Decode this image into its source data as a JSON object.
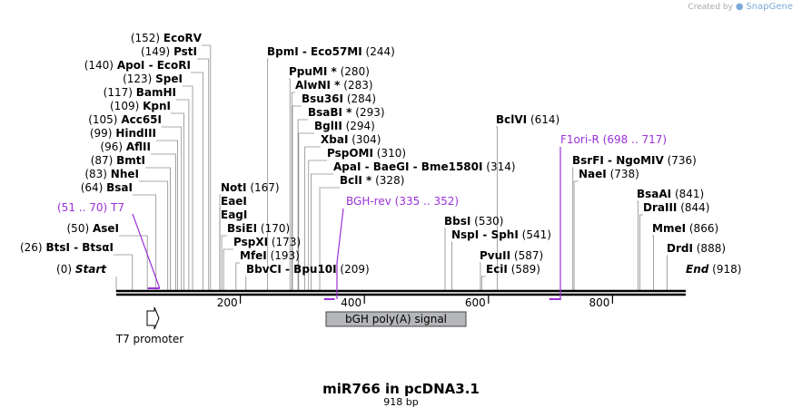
{
  "credit": {
    "prefix": "Created by",
    "brand": "SnapGene"
  },
  "title": "miR766 in pcDNA3.1",
  "subtitle": "918 bp",
  "sequence": {
    "length": 918,
    "start_label": "Start",
    "end_label": "End",
    "start_pos": "(0)",
    "end_pos": "(918)"
  },
  "ticks": [
    200,
    400,
    600,
    800
  ],
  "sites": [
    {
      "name": "EcoRV",
      "pos": 152,
      "pos_text": "(152)"
    },
    {
      "name": "PstI",
      "pos": 149,
      "pos_text": "(149)"
    },
    {
      "name": "ApoI - EcoRI",
      "pos": 140,
      "pos_text": "(140)"
    },
    {
      "name": "SpeI",
      "pos": 123,
      "pos_text": "(123)"
    },
    {
      "name": "BamHI",
      "pos": 117,
      "pos_text": "(117)"
    },
    {
      "name": "KpnI",
      "pos": 109,
      "pos_text": "(109)"
    },
    {
      "name": "Acc65I",
      "pos": 105,
      "pos_text": "(105)"
    },
    {
      "name": "HindIII",
      "pos": 99,
      "pos_text": "(99)"
    },
    {
      "name": "AflII",
      "pos": 96,
      "pos_text": "(96)"
    },
    {
      "name": "BmtI",
      "pos": 87,
      "pos_text": "(87)"
    },
    {
      "name": "NheI",
      "pos": 83,
      "pos_text": "(83)"
    },
    {
      "name": "BsaI",
      "pos": 64,
      "pos_text": "(64)"
    },
    {
      "name": "AseI",
      "pos": 50,
      "pos_text": "(50)"
    },
    {
      "name": "BtsI - BtsαI",
      "pos": 26,
      "pos_text": "(26)"
    },
    {
      "name": "BpmI - Eco57MI",
      "pos": 244,
      "pos_text": "(244)"
    },
    {
      "name": "PpuMI *",
      "pos": 280,
      "pos_text": "(280)"
    },
    {
      "name": "AlwNI *",
      "pos": 283,
      "pos_text": "(283)"
    },
    {
      "name": "Bsu36I",
      "pos": 284,
      "pos_text": "(284)"
    },
    {
      "name": "BsaBI *",
      "pos": 293,
      "pos_text": "(293)"
    },
    {
      "name": "BglII",
      "pos": 294,
      "pos_text": "(294)"
    },
    {
      "name": "XbaI",
      "pos": 304,
      "pos_text": "(304)"
    },
    {
      "name": "PspOMI",
      "pos": 310,
      "pos_text": "(310)"
    },
    {
      "name": "ApaI - BaeGI - Bme1580I",
      "pos": 314,
      "pos_text": "(314)"
    },
    {
      "name": "BclI *",
      "pos": 328,
      "pos_text": "(328)"
    },
    {
      "name": "NotI",
      "pos": 167,
      "pos_text": "(167)"
    },
    {
      "name": "EaeI",
      "pos": 167,
      "pos_text": ""
    },
    {
      "name": "EagI",
      "pos": 167,
      "pos_text": ""
    },
    {
      "name": "BsiEI",
      "pos": 170,
      "pos_text": "(170)"
    },
    {
      "name": "PspXI",
      "pos": 173,
      "pos_text": "(173)"
    },
    {
      "name": "MfeI",
      "pos": 193,
      "pos_text": "(193)"
    },
    {
      "name": "BbvCI - Bpu10I",
      "pos": 209,
      "pos_text": "(209)"
    },
    {
      "name": "BclVI",
      "pos": 614,
      "pos_text": "(614)"
    },
    {
      "name": "BsrFI - NgoMIV",
      "pos": 736,
      "pos_text": "(736)"
    },
    {
      "name": "NaeI",
      "pos": 738,
      "pos_text": "(738)"
    },
    {
      "name": "BsaAI",
      "pos": 841,
      "pos_text": "(841)"
    },
    {
      "name": "DraIII",
      "pos": 844,
      "pos_text": "(844)"
    },
    {
      "name": "MmeI",
      "pos": 866,
      "pos_text": "(866)"
    },
    {
      "name": "DrdI",
      "pos": 888,
      "pos_text": "(888)"
    },
    {
      "name": "BbsI",
      "pos": 530,
      "pos_text": "(530)"
    },
    {
      "name": "NspI - SphI",
      "pos": 541,
      "pos_text": "(541)"
    },
    {
      "name": "PvuII",
      "pos": 587,
      "pos_text": "(587)"
    },
    {
      "name": "EciI",
      "pos": 589,
      "pos_text": "(589)"
    }
  ],
  "primers": [
    {
      "name": "T7",
      "range": "(51 .. 70)",
      "start": 51,
      "end": 70
    },
    {
      "name": "BGH-rev",
      "range": "(335 .. 352)",
      "start": 335,
      "end": 352
    },
    {
      "name": "F1ori-R",
      "range": "(698 .. 717)",
      "start": 698,
      "end": 717
    }
  ],
  "features": [
    {
      "name": "T7 promoter",
      "start": 51,
      "end": 70,
      "type": "promoter"
    },
    {
      "name": "bGH poly(A) signal",
      "start": 341,
      "end": 565,
      "type": "polyA"
    }
  ],
  "colors": {
    "primer": "#9b30d9",
    "polyA_fill": "#b4b6b9",
    "backbone": "#000000",
    "site_line": "#8c8c8c"
  }
}
